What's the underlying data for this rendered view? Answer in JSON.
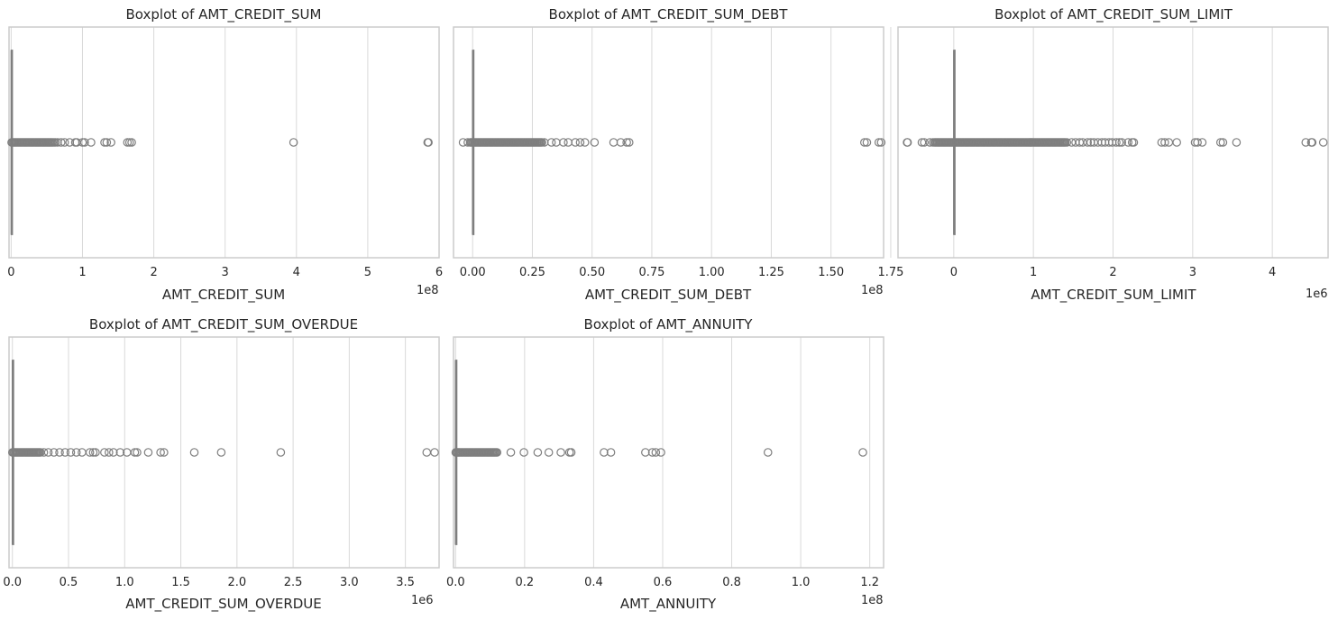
{
  "figure": {
    "background": "#ffffff",
    "grid_color": "#d9d9d9",
    "frame_color": "#cccccc",
    "mark_color": "#7f7f7f"
  },
  "chart_data": [
    {
      "type": "boxplot",
      "title": "Boxplot of AMT_CREDIT_SUM",
      "xlabel": "AMT_CREDIT_SUM",
      "offset_text": "1e8",
      "scale": 100000000,
      "xlim": [
        -3000000,
        600000000
      ],
      "ticks": [
        0,
        100000000,
        200000000,
        300000000,
        400000000,
        500000000,
        600000000
      ],
      "tick_labels": [
        "0",
        "1",
        "2",
        "3",
        "4",
        "5",
        "6"
      ],
      "grid": true,
      "box": {
        "q1": 50000,
        "median": 120000,
        "q3": 300000,
        "whisker_low": 0,
        "whisker_high": 650000
      },
      "outlier_range": [
        700000,
        58000000
      ],
      "outliers": [
        60000000,
        62000000,
        65000000,
        70000000,
        75000000,
        82000000,
        90000000,
        92000000,
        100000000,
        103000000,
        112000000,
        131000000,
        134000000,
        140000000,
        163000000,
        166000000,
        169000000,
        396000000,
        584000000,
        585000000
      ]
    },
    {
      "type": "boxplot",
      "title": "Boxplot of AMT_CREDIT_SUM_DEBT",
      "xlabel": "AMT_CREDIT_SUM_DEBT",
      "offset_text": "1e8",
      "scale": 100000000,
      "xlim": [
        -8000000,
        172000000
      ],
      "ticks": [
        0,
        25000000,
        50000000,
        75000000,
        100000000,
        125000000,
        150000000,
        175000000
      ],
      "tick_labels": [
        "0.00",
        "0.25",
        "0.50",
        "0.75",
        "1.00",
        "1.25",
        "1.50",
        "1.75"
      ],
      "grid": true,
      "box": {
        "q1": 0,
        "median": 0,
        "q3": 40000,
        "whisker_low": 0,
        "whisker_high": 100000
      },
      "outlier_range": [
        -1000000,
        29000000
      ],
      "outliers": [
        -4000000,
        -2000000,
        30000000,
        33000000,
        35000000,
        38000000,
        40000000,
        43000000,
        45000000,
        47000000,
        51000000,
        59000000,
        62000000,
        64500000,
        65500000,
        164000000,
        165000000,
        170000000,
        171000000
      ]
    },
    {
      "type": "boxplot",
      "title": "Boxplot of AMT_CREDIT_SUM_LIMIT",
      "xlabel": "AMT_CREDIT_SUM_LIMIT",
      "offset_text": "1e6",
      "scale": 1000000,
      "xlim": [
        -700000,
        4700000
      ],
      "ticks": [
        0,
        1000000,
        2000000,
        3000000,
        4000000
      ],
      "tick_labels": [
        "0",
        "1",
        "2",
        "3",
        "4"
      ],
      "grid": true,
      "box": {
        "q1": 0,
        "median": 0,
        "q3": 0,
        "whisker_low": 0,
        "whisker_high": 0
      },
      "outlier_range": [
        -240000,
        1400000
      ],
      "outliers": [
        -586000,
        -580000,
        -400000,
        -370000,
        -300000,
        -260000,
        1420000,
        1480000,
        1530000,
        1580000,
        1620000,
        1680000,
        1720000,
        1760000,
        1810000,
        1860000,
        1900000,
        1950000,
        1990000,
        2040000,
        2080000,
        2110000,
        2190000,
        2240000,
        2260000,
        2610000,
        2650000,
        2700000,
        2800000,
        3030000,
        3060000,
        3120000,
        3350000,
        3380000,
        3550000,
        4420000,
        4490000,
        4500000,
        4640000
      ]
    },
    {
      "type": "boxplot",
      "title": "Boxplot of AMT_CREDIT_SUM_OVERDUE",
      "xlabel": "AMT_CREDIT_SUM_OVERDUE",
      "offset_text": "1e6",
      "scale": 1000000,
      "xlim": [
        -30000,
        3800000
      ],
      "ticks": [
        0,
        500000,
        1000000,
        1500000,
        2000000,
        2500000,
        3000000,
        3500000
      ],
      "tick_labels": [
        "0.0",
        "0.5",
        "1.0",
        "1.5",
        "2.0",
        "2.5",
        "3.0",
        "3.5"
      ],
      "grid": true,
      "box": {
        "q1": 0,
        "median": 0,
        "q3": 0,
        "whisker_low": 0,
        "whisker_high": 0
      },
      "outlier_range": [
        500,
        240000
      ],
      "outliers": [
        250000,
        280000,
        320000,
        370000,
        420000,
        470000,
        520000,
        570000,
        620000,
        690000,
        720000,
        740000,
        820000,
        860000,
        900000,
        960000,
        1020000,
        1090000,
        1110000,
        1210000,
        1320000,
        1350000,
        1620000,
        1860000,
        2390000,
        3690000,
        3760000
      ]
    },
    {
      "type": "boxplot",
      "title": "Boxplot of AMT_ANNUITY",
      "xlabel": "AMT_ANNUITY",
      "offset_text": "1e8",
      "scale": 100000000,
      "xlim": [
        -600000,
        124000000
      ],
      "ticks": [
        0,
        20000000,
        40000000,
        60000000,
        80000000,
        100000000,
        120000000
      ],
      "tick_labels": [
        "0.0",
        "0.2",
        "0.4",
        "0.6",
        "0.8",
        "1.0",
        "1.2"
      ],
      "grid": true,
      "box": {
        "q1": 0,
        "median": 0,
        "q3": 16000,
        "whisker_low": 0,
        "whisker_high": 40000
      },
      "outlier_range": [
        50000,
        12000000
      ],
      "outliers": [
        16000000,
        19800000,
        23800000,
        27000000,
        30500000,
        33000000,
        33500000,
        43000000,
        45000000,
        55000000,
        57000000,
        58000000,
        59500000,
        90500000,
        118000000
      ]
    }
  ]
}
